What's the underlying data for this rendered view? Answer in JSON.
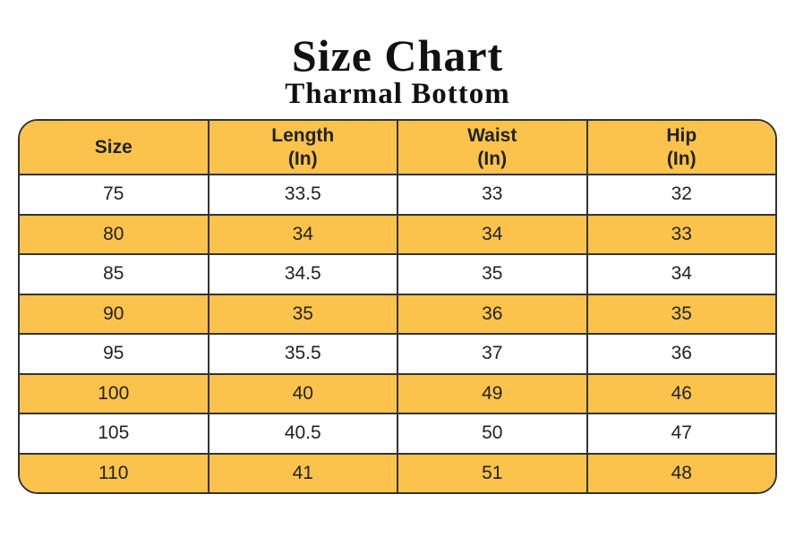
{
  "header": {
    "title": "Size Chart",
    "subtitle": "Tharmal Bottom"
  },
  "table": {
    "columns": [
      [
        "Size"
      ],
      [
        "Length",
        "(In)"
      ],
      [
        "Waist",
        "(In)"
      ],
      [
        "Hip",
        "(In)"
      ]
    ],
    "rows": [
      [
        75,
        33.5,
        33,
        32
      ],
      [
        80,
        34,
        34,
        33
      ],
      [
        85,
        34.5,
        35,
        34
      ],
      [
        90,
        35,
        36,
        35
      ],
      [
        95,
        35.5,
        37,
        36
      ],
      [
        100,
        40,
        49,
        46
      ],
      [
        105,
        40.5,
        50,
        47
      ],
      [
        110,
        41,
        51,
        48
      ]
    ]
  }
}
